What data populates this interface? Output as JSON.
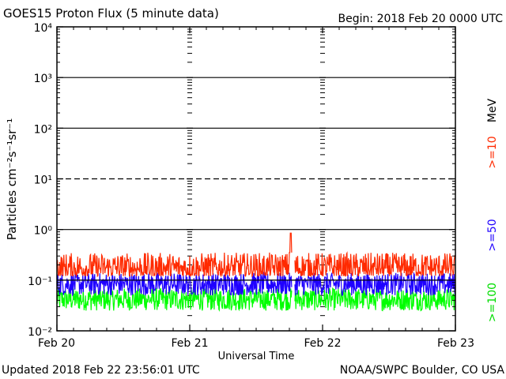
{
  "chart_data": {
    "type": "line",
    "title": "GOES15 Proton Flux (5 minute data)",
    "begin_label": "Begin: 2018 Feb 20 0000 UTC",
    "xlabel": "Universal Time",
    "ylabel": "Particles cm⁻²s⁻¹sr⁻¹",
    "footer_left": "Updated 2018 Feb 22 23:56:01 UTC",
    "footer_right": "NOAA/SWPC Boulder, CO USA",
    "y_scale": "log",
    "ylim": [
      0.01,
      10000
    ],
    "xlim": [
      0,
      3
    ],
    "x_unit": "days since 2018 Feb 20 00:00 UTC",
    "x_ticks": [
      "Feb 20",
      "Feb 21",
      "Feb 22",
      "Feb 23"
    ],
    "y_ticks": [
      "10⁻²",
      "10⁻¹",
      "10⁰",
      "10¹",
      "10²",
      "10³",
      "10⁴"
    ],
    "thresholds": [
      {
        "value": 10,
        "style": "dashed"
      },
      {
        "value": 0.1,
        "style": "solid"
      }
    ],
    "right_label": {
      "energy": "MeV",
      "series": [
        ">=10",
        ">=50",
        ">=100"
      ]
    },
    "series": [
      {
        "name": ">=10",
        "color": "#ff2a00",
        "approx_range": [
          0.12,
          0.35
        ],
        "peak": {
          "x": 1.76,
          "y": 0.85
        }
      },
      {
        "name": ">=50",
        "color": "#1f00ff",
        "approx_range": [
          0.05,
          0.14
        ]
      },
      {
        "name": ">=100",
        "color": "#00ff00",
        "approx_range": [
          0.025,
          0.07
        ]
      }
    ],
    "data_gap": {
      "x": [
        1.77,
        1.79
      ]
    }
  }
}
